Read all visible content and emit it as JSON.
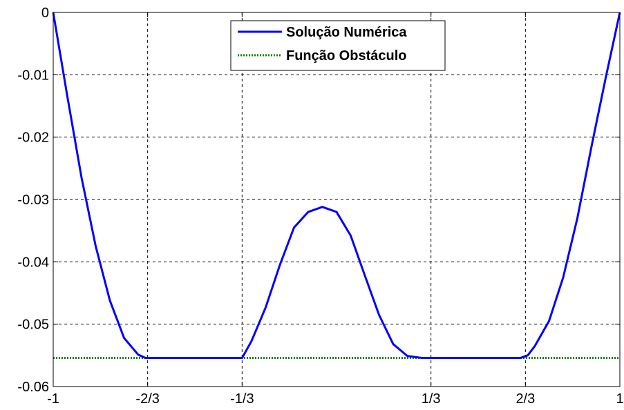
{
  "chart_data": {
    "type": "line",
    "title": "",
    "xlabel": "",
    "ylabel": "",
    "xlim": [
      -1,
      1
    ],
    "ylim": [
      -0.06,
      0
    ],
    "grid": true,
    "legend_position": "top-center",
    "x_ticks": [
      {
        "value": -1,
        "label": "-1"
      },
      {
        "value": -0.6667,
        "label": "-2/3"
      },
      {
        "value": -0.3333,
        "label": "-1/3"
      },
      {
        "value": 0.3333,
        "label": "1/3"
      },
      {
        "value": 0.6667,
        "label": "2/3"
      },
      {
        "value": 1,
        "label": "1"
      }
    ],
    "y_ticks": [
      {
        "value": 0,
        "label": "0"
      },
      {
        "value": -0.01,
        "label": "-0.01"
      },
      {
        "value": -0.02,
        "label": "-0.02"
      },
      {
        "value": -0.03,
        "label": "-0.03"
      },
      {
        "value": -0.04,
        "label": "-0.04"
      },
      {
        "value": -0.05,
        "label": "-0.05"
      },
      {
        "value": -0.06,
        "label": "-0.06"
      }
    ],
    "series": [
      {
        "name": "Solução Numérica",
        "color": "#0000ff",
        "style": "solid",
        "x": [
          -1,
          -0.95,
          -0.9,
          -0.85,
          -0.8,
          -0.75,
          -0.7,
          -0.675,
          -0.65,
          -0.6,
          -0.5,
          -0.4,
          -0.333,
          -0.3,
          -0.25,
          -0.2,
          -0.15,
          -0.1,
          -0.05,
          0,
          0.05,
          0.1,
          0.15,
          0.2,
          0.25,
          0.3,
          0.333,
          0.4,
          0.5,
          0.6,
          0.65,
          0.675,
          0.7,
          0.75,
          0.8,
          0.85,
          0.9,
          0.95,
          1
        ],
        "y": [
          0,
          -0.0135,
          -0.0265,
          -0.0375,
          -0.0462,
          -0.0522,
          -0.0549,
          -0.0554,
          -0.0554,
          -0.0554,
          -0.0554,
          -0.0554,
          -0.0554,
          -0.0527,
          -0.0473,
          -0.0405,
          -0.0345,
          -0.032,
          -0.0312,
          -0.032,
          -0.0358,
          -0.0422,
          -0.0485,
          -0.0532,
          -0.0551,
          -0.0554,
          -0.0554,
          -0.0554,
          -0.0554,
          -0.0554,
          -0.0554,
          -0.055,
          -0.0535,
          -0.0495,
          -0.0425,
          -0.033,
          -0.0215,
          -0.0105,
          0
        ]
      },
      {
        "name": "Função Obstáculo",
        "color": "#008000",
        "style": "dotted",
        "x": [
          -1,
          1
        ],
        "y": [
          -0.0554,
          -0.0554
        ]
      }
    ]
  }
}
